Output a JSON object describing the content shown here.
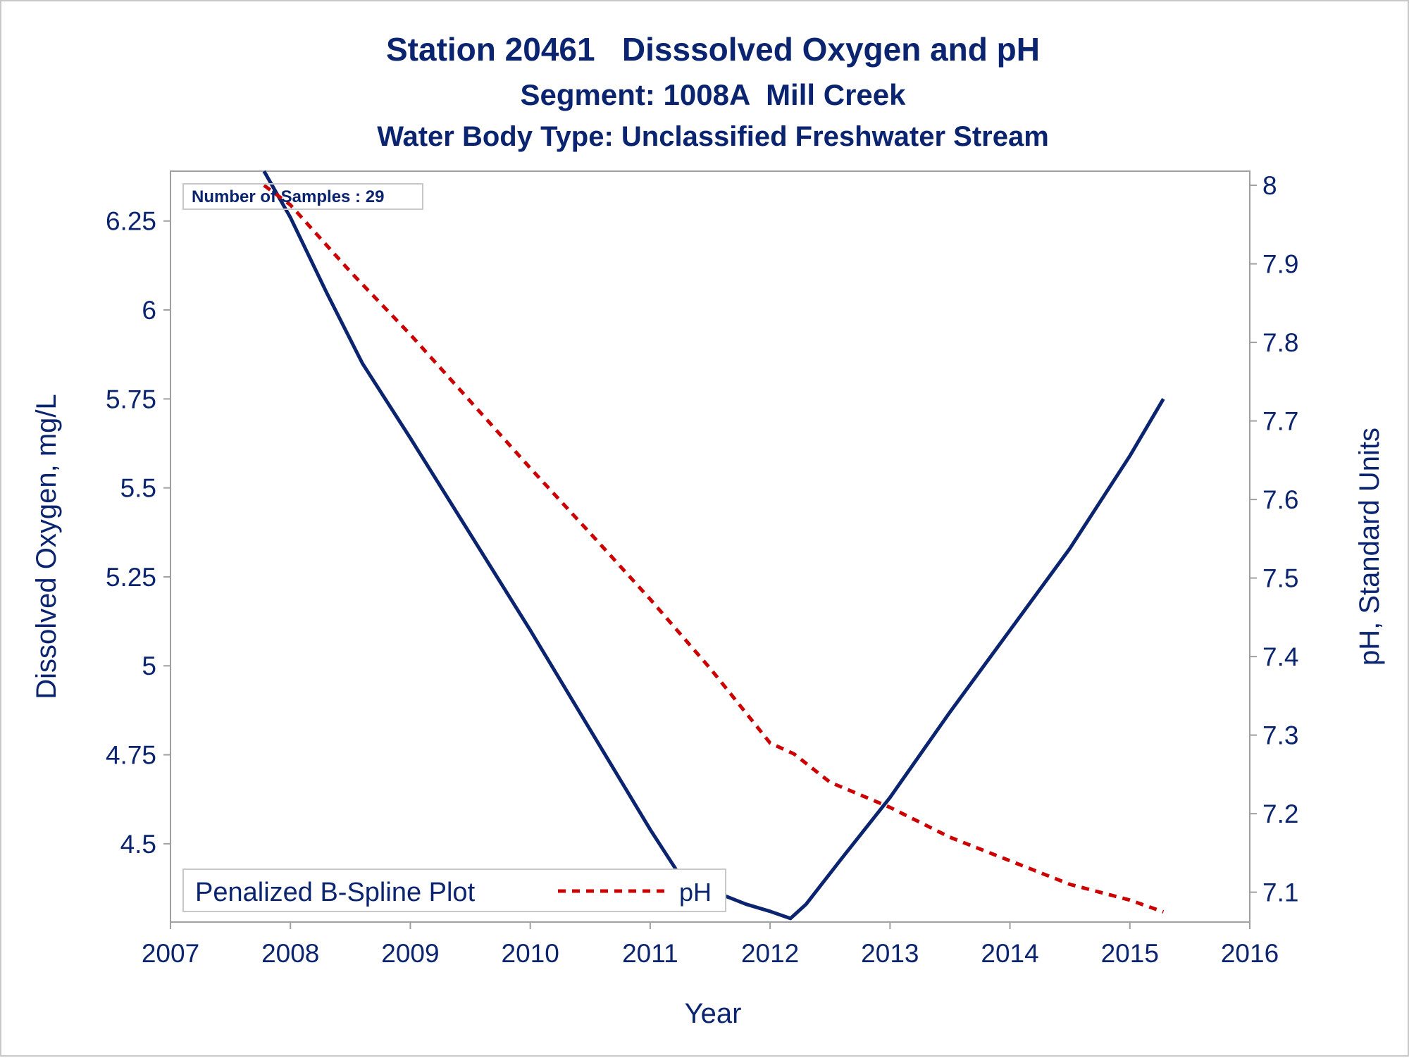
{
  "titles": {
    "line1": "Station 20461   Disssolved Oxygen and pH",
    "line2": "Segment: 1008A  Mill Creek",
    "line3": "Water Body Type: Unclassified Freshwater Stream"
  },
  "inset": {
    "samples": "Number of Samples : 29"
  },
  "legend": {
    "title": "Penalized B-Spline Plot",
    "item": "pH"
  },
  "colors": {
    "text": "#0b2470",
    "do_line": "#0b2470",
    "ph_line": "#cc0000",
    "axis": "#a0a0a0"
  },
  "chart_data": {
    "type": "line",
    "title": "Station 20461   Disssolved Oxygen and pH",
    "xlabel": "Year",
    "ylabel_left": "Dissolved Oxygen, mg/L",
    "ylabel_right": "pH, Standard Units",
    "xlim": [
      2007,
      2016
    ],
    "ylim_left": [
      4.28,
      6.39
    ],
    "ylim_right": [
      7.062,
      8.018
    ],
    "x_ticks": [
      "2007",
      "2008",
      "2009",
      "2010",
      "2011",
      "2012",
      "2013",
      "2014",
      "2015",
      "2016"
    ],
    "y_left_ticks": [
      "4.5",
      "4.75",
      "5",
      "5.25",
      "5.5",
      "5.75",
      "6",
      "6.25"
    ],
    "y_right_ticks": [
      "7.1",
      "7.2",
      "7.3",
      "7.4",
      "7.5",
      "7.6",
      "7.7",
      "7.8",
      "7.9",
      "8"
    ],
    "grid": false,
    "legend_position": "bottom-left",
    "series": [
      {
        "axis": "left",
        "style": "solid",
        "x": [
          2007.78,
          2008.0,
          2008.3,
          2008.6,
          2009.0,
          2009.5,
          2010.0,
          2010.5,
          2011.0,
          2011.25,
          2011.5,
          2011.8,
          2012.0,
          2012.17,
          2012.3,
          2012.6,
          2013.0,
          2013.5,
          2014.0,
          2014.5,
          2015.0,
          2015.28
        ],
        "y": [
          6.39,
          6.26,
          6.05,
          5.85,
          5.64,
          5.37,
          5.1,
          4.82,
          4.54,
          4.41,
          4.37,
          4.33,
          4.31,
          4.29,
          4.33,
          4.46,
          4.63,
          4.87,
          5.1,
          5.33,
          5.59,
          5.75
        ]
      },
      {
        "name": "pH",
        "axis": "right",
        "style": "dashed",
        "x": [
          2007.78,
          2008.0,
          2008.5,
          2009.0,
          2009.5,
          2010.0,
          2010.5,
          2011.0,
          2011.5,
          2012.0,
          2012.2,
          2012.5,
          2013.0,
          2013.5,
          2014.0,
          2014.5,
          2015.0,
          2015.28
        ],
        "y": [
          8.0,
          7.975,
          7.89,
          7.81,
          7.725,
          7.64,
          7.557,
          7.473,
          7.385,
          7.29,
          7.276,
          7.24,
          7.208,
          7.17,
          7.14,
          7.11,
          7.09,
          7.075
        ]
      }
    ]
  }
}
